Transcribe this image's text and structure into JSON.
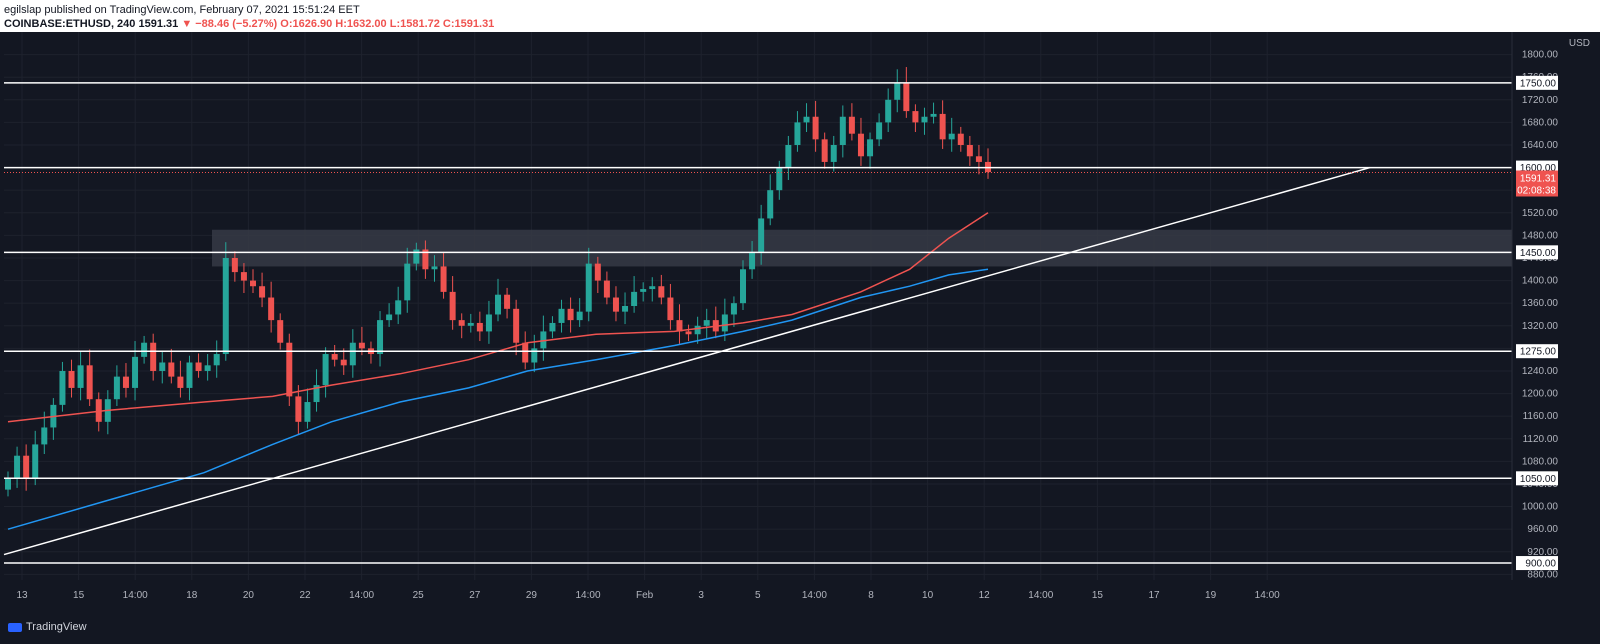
{
  "header": {
    "published": "egilslap published on TradingView.com, February 07, 2021 15:51:24 EET",
    "symbol": "COINBASE:ETHUSD, 240",
    "last": "1591.31",
    "change": "▼ −88.46 (−5.27%)",
    "ohlc": "O:1626.90 H:1632.00 L:1581.72 C:1591.31"
  },
  "footer": {
    "brand": "TradingView"
  },
  "colors": {
    "background": "#131722",
    "up": "#26a69a",
    "down": "#ef5350",
    "ma_fast": "#ef5350",
    "ma_slow": "#2196f3",
    "level_lines": "#ffffff"
  },
  "chart_data": {
    "type": "candlestick",
    "symbol": "COINBASE:ETHUSD",
    "interval": "240",
    "currency": "USD",
    "x_tick_labels": [
      "13",
      "15",
      "14:00",
      "18",
      "20",
      "22",
      "14:00",
      "25",
      "27",
      "29",
      "14:00",
      "Feb",
      "3",
      "5",
      "14:00",
      "8",
      "10",
      "12",
      "14:00",
      "15",
      "17",
      "19",
      "14:00"
    ],
    "y_tick_labels": [
      "880.00",
      "920.00",
      "960.00",
      "1000.00",
      "1040.00",
      "1080.00",
      "1120.00",
      "1160.00",
      "1200.00",
      "1240.00",
      "1280.00",
      "1320.00",
      "1360.00",
      "1400.00",
      "1440.00",
      "1480.00",
      "1520.00",
      "1560.00",
      "1640.00",
      "1680.00",
      "1720.00",
      "1760.00",
      "1800.00"
    ],
    "ylim": [
      870,
      1840
    ],
    "horizontal_levels": [
      "1750.00",
      "1600.00",
      "1450.00",
      "1275.00",
      "1050.00",
      "900.00"
    ],
    "last_price_label": "1591.31",
    "countdown_label": "02:08:38",
    "resistance_zone": [
      1425,
      1490
    ],
    "trendline": [
      [
        0,
        915
      ],
      [
        1,
        1600
      ]
    ],
    "close_series": [
      1050,
      1090,
      1050,
      1110,
      1140,
      1180,
      1240,
      1210,
      1250,
      1190,
      1150,
      1190,
      1230,
      1210,
      1265,
      1290,
      1240,
      1255,
      1230,
      1210,
      1255,
      1240,
      1250,
      1270,
      1440,
      1415,
      1400,
      1390,
      1370,
      1330,
      1290,
      1195,
      1150,
      1185,
      1215,
      1270,
      1260,
      1250,
      1290,
      1280,
      1270,
      1330,
      1340,
      1365,
      1430,
      1455,
      1420,
      1425,
      1380,
      1330,
      1320,
      1325,
      1310,
      1340,
      1375,
      1350,
      1290,
      1255,
      1280,
      1310,
      1325,
      1350,
      1330,
      1345,
      1430,
      1400,
      1370,
      1345,
      1355,
      1380,
      1385,
      1390,
      1370,
      1330,
      1310,
      1305,
      1320,
      1330,
      1310,
      1340,
      1360,
      1420,
      1450,
      1510,
      1560,
      1600,
      1640,
      1680,
      1690,
      1650,
      1610,
      1640,
      1690,
      1660,
      1620,
      1650,
      1680,
      1720,
      1750,
      1700,
      1680,
      1690,
      1695,
      1650,
      1660,
      1640,
      1620,
      1610,
      1592
    ],
    "ma_fast_series": [
      [
        0,
        1150
      ],
      [
        0.1,
        1170
      ],
      [
        0.2,
        1185
      ],
      [
        0.27,
        1195
      ],
      [
        0.33,
        1215
      ],
      [
        0.4,
        1235
      ],
      [
        0.47,
        1260
      ],
      [
        0.53,
        1290
      ],
      [
        0.6,
        1305
      ],
      [
        0.68,
        1310
      ],
      [
        0.75,
        1325
      ],
      [
        0.8,
        1340
      ],
      [
        0.87,
        1380
      ],
      [
        0.92,
        1420
      ],
      [
        0.96,
        1475
      ],
      [
        1,
        1520
      ]
    ],
    "ma_slow_series": [
      [
        0,
        960
      ],
      [
        0.1,
        1010
      ],
      [
        0.2,
        1060
      ],
      [
        0.27,
        1110
      ],
      [
        0.33,
        1150
      ],
      [
        0.4,
        1185
      ],
      [
        0.47,
        1210
      ],
      [
        0.53,
        1240
      ],
      [
        0.6,
        1260
      ],
      [
        0.68,
        1285
      ],
      [
        0.75,
        1310
      ],
      [
        0.8,
        1330
      ],
      [
        0.87,
        1370
      ],
      [
        0.92,
        1390
      ],
      [
        0.96,
        1410
      ],
      [
        1,
        1420
      ]
    ]
  }
}
